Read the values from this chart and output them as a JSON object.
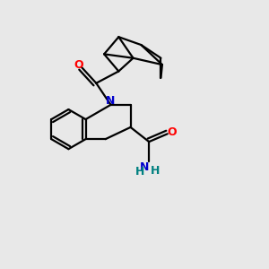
{
  "bg_color": "#e8e8e8",
  "bond_color": "#000000",
  "N_color": "#0000cc",
  "O_color": "#ff0000",
  "NH2_N_color": "#0000cc",
  "NH2_H_color": "#008080",
  "line_width": 1.6,
  "figsize": [
    3.0,
    3.0
  ],
  "dpi": 100,
  "xlim": [
    0,
    10
  ],
  "ylim": [
    0,
    10
  ]
}
